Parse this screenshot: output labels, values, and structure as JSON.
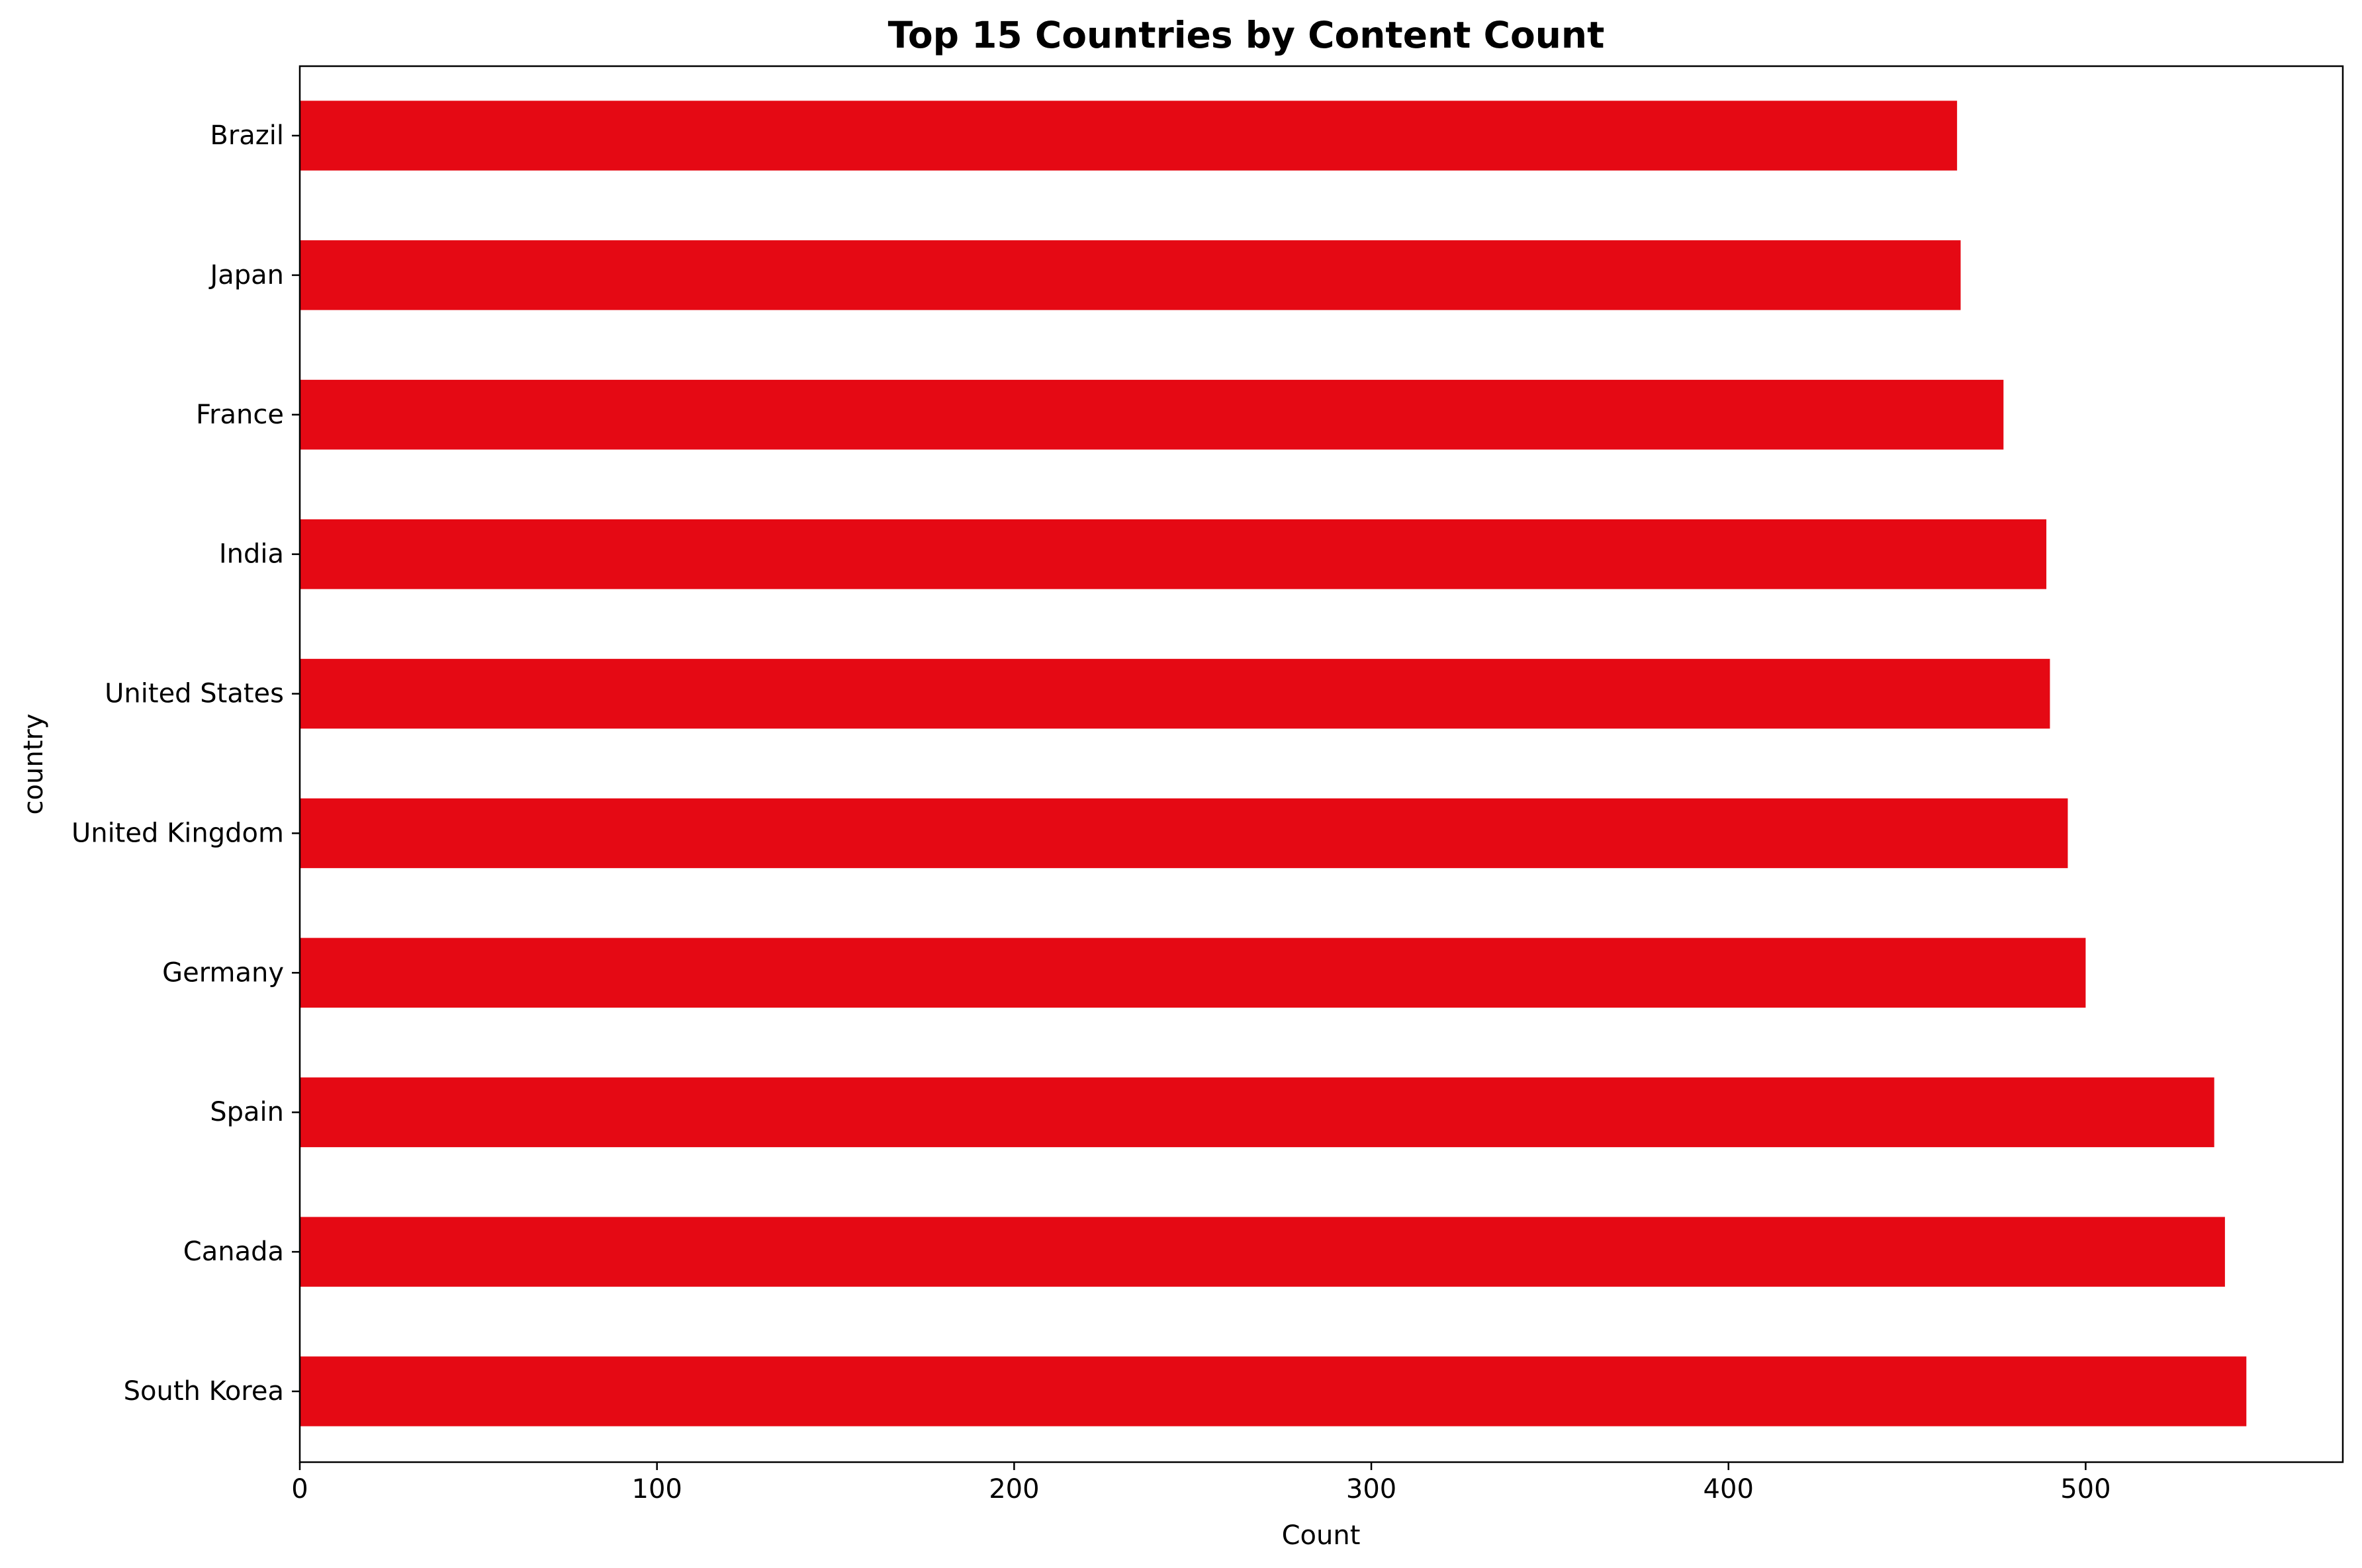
{
  "chart_data": {
    "type": "bar",
    "orientation": "horizontal",
    "title": "Top 15 Countries by Content Count",
    "xlabel": "Count",
    "ylabel": "country",
    "categories": [
      "South Korea",
      "Canada",
      "Spain",
      "Germany",
      "United Kingdom",
      "United States",
      "India",
      "France",
      "Japan",
      "Brazil"
    ],
    "values": [
      545,
      539,
      536,
      500,
      495,
      490,
      489,
      477,
      465,
      464
    ],
    "xlim": [
      0,
      572
    ],
    "xticks": [
      0,
      100,
      200,
      300,
      400,
      500
    ],
    "bar_color": "#e50914",
    "grid": false,
    "legend": "none"
  }
}
